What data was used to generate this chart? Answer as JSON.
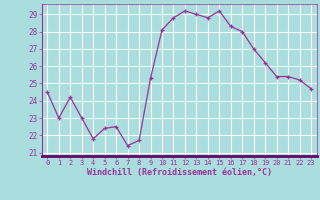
{
  "x": [
    0,
    1,
    2,
    3,
    4,
    5,
    6,
    7,
    8,
    9,
    10,
    11,
    12,
    13,
    14,
    15,
    16,
    17,
    18,
    19,
    20,
    21,
    22,
    23
  ],
  "y": [
    24.5,
    23.0,
    24.2,
    23.0,
    21.8,
    22.4,
    22.5,
    21.4,
    21.7,
    25.3,
    28.1,
    28.8,
    29.2,
    29.0,
    28.8,
    29.2,
    28.3,
    28.0,
    27.0,
    26.2,
    25.4,
    25.4,
    25.2,
    24.7
  ],
  "line_color": "#993399",
  "marker_color": "#993399",
  "bg_color": "#aadddd",
  "grid_color": "#ffffff",
  "xlabel": "Windchill (Refroidissement éolien,°C)",
  "xlabel_color": "#993399",
  "tick_color": "#993399",
  "ylabel_ticks": [
    21,
    22,
    23,
    24,
    25,
    26,
    27,
    28,
    29
  ],
  "xlim": [
    -0.5,
    23.5
  ],
  "ylim": [
    20.8,
    29.6
  ],
  "font": "monospace",
  "spine_color": "#993399",
  "bottom_spine_color": "#660066"
}
